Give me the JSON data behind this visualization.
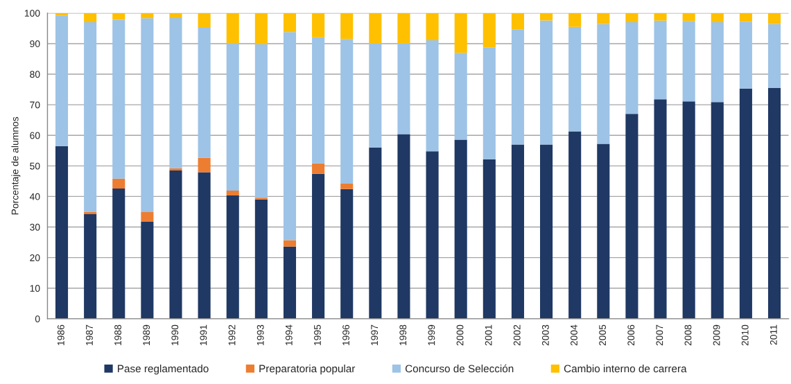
{
  "chart_data": {
    "type": "bar",
    "stacked": true,
    "ylabel": "Porcentaje de alumnos",
    "categories": [
      "1986",
      "1987",
      "1988",
      "1989",
      "1990",
      "1991",
      "1992",
      "1993",
      "1994",
      "1995",
      "1996",
      "1997",
      "1998",
      "1999",
      "2000",
      "2001",
      "2002",
      "2003",
      "2004",
      "2005",
      "2006",
      "2007",
      "2008",
      "2009",
      "2010",
      "2011"
    ],
    "series": [
      {
        "name": "Pase reglamentado",
        "color": "#1f3864",
        "values": [
          56.5,
          34.2,
          42.6,
          31.7,
          48.5,
          47.9,
          40.3,
          39.0,
          23.6,
          47.4,
          42.4,
          56.0,
          60.4,
          54.8,
          58.6,
          52.2,
          57.0,
          57.0,
          61.3,
          57.2,
          67.0,
          71.8,
          71.1,
          70.9,
          75.3,
          75.5
        ]
      },
      {
        "name": "Preparatoria popular",
        "color": "#ed7d31",
        "values": [
          null,
          0.8,
          3.2,
          3.2,
          0.7,
          4.7,
          1.6,
          0.6,
          2.1,
          3.4,
          1.8,
          null,
          null,
          null,
          null,
          null,
          null,
          null,
          null,
          null,
          null,
          null,
          null,
          null,
          null,
          null
        ]
      },
      {
        "name": "Concurso de Selección",
        "color": "#9dc3e6",
        "values": [
          42.6,
          62.0,
          52.0,
          63.4,
          49.2,
          42.6,
          48.3,
          50.3,
          68.1,
          41.3,
          47.3,
          34.0,
          29.6,
          36.3,
          28.4,
          36.5,
          37.6,
          40.6,
          34.2,
          39.2,
          30.0,
          25.7,
          26.3,
          26.1,
          21.9,
          20.9
        ]
      },
      {
        "name": "Cambio interno de carrera",
        "color": "#ffc000",
        "values": [
          0.9,
          3.0,
          2.2,
          1.7,
          1.6,
          4.8,
          9.8,
          10.1,
          6.2,
          7.9,
          8.5,
          10.0,
          10.0,
          8.9,
          13.0,
          11.3,
          5.4,
          2.4,
          4.5,
          3.6,
          3.0,
          2.5,
          2.6,
          3.0,
          2.8,
          3.6
        ]
      }
    ],
    "ylim": [
      0,
      100
    ],
    "yticks": [
      0,
      10,
      20,
      30,
      40,
      50,
      60,
      70,
      80,
      90,
      100
    ],
    "grid": "y",
    "legend": "bottom"
  }
}
